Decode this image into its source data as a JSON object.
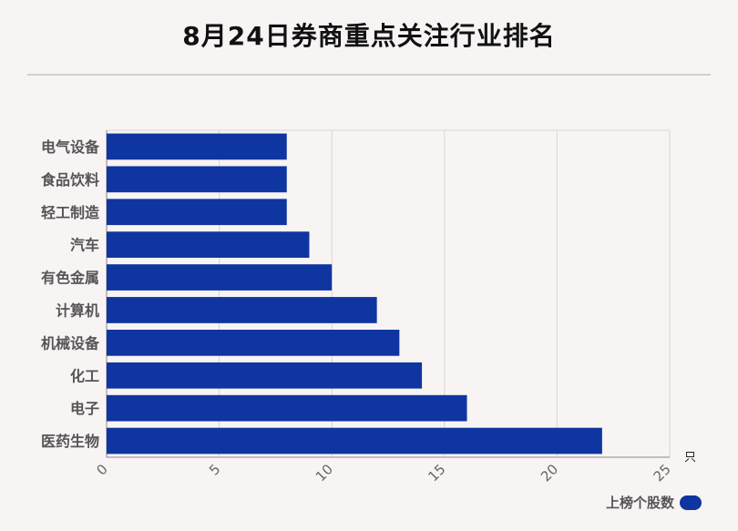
{
  "title": "8月24日券商重点关注行业排名",
  "unit_label": "只",
  "bar_color": "#0e35a0",
  "chart_data": {
    "type": "bar",
    "orientation": "horizontal",
    "title": "8月24日券商重点关注行业排名",
    "categories": [
      "电气设备",
      "食品饮料",
      "轻工制造",
      "汽车",
      "有色金属",
      "计算机",
      "机械设备",
      "化工",
      "电子",
      "医药生物"
    ],
    "series": [
      {
        "name": "上榜个股数",
        "values": [
          8,
          8,
          8,
          9,
          10,
          12,
          13,
          14,
          16,
          22
        ]
      }
    ],
    "xlim": [
      0,
      25
    ],
    "xticks": [
      "0",
      "5",
      "10",
      "15",
      "20",
      "25"
    ],
    "xunit": "只",
    "grid": true,
    "legend": "bottom-right"
  }
}
